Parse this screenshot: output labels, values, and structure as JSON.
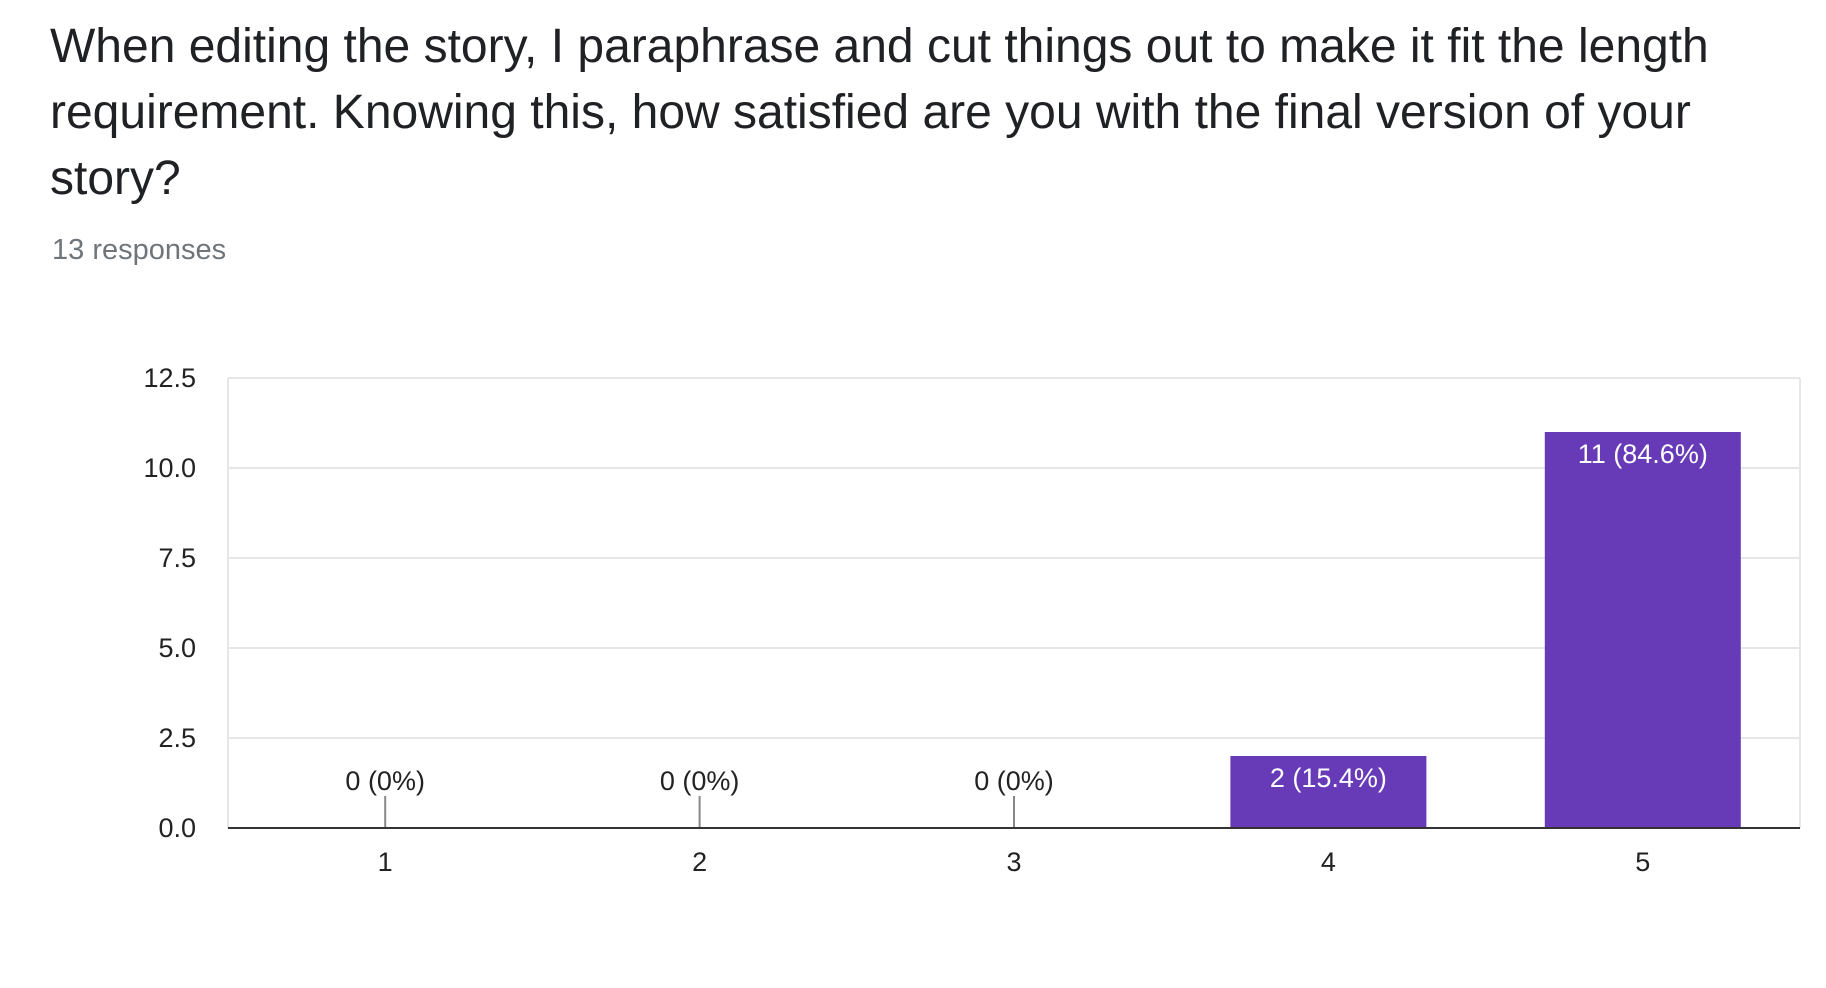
{
  "question": "When editing the story, I paraphrase and cut things out to make it fit the length requirement. Knowing this, how satisfied are you with the final version of your story?",
  "responses": "13 responses",
  "colors": {
    "bar": "#673ab7",
    "grid": "#e6e6e6",
    "baseline": "#333333"
  },
  "chart_data": {
    "type": "bar",
    "categories": [
      "1",
      "2",
      "3",
      "4",
      "5"
    ],
    "values": [
      0,
      0,
      0,
      2,
      11
    ],
    "data_labels": [
      "0 (0%)",
      "0 (0%)",
      "0 (0%)",
      "2 (15.4%)",
      "11 (84.6%)"
    ],
    "ylim": [
      0,
      12.5
    ],
    "yticks": [
      "0.0",
      "2.5",
      "5.0",
      "7.5",
      "10.0",
      "12.5"
    ],
    "title": "",
    "xlabel": "",
    "ylabel": "",
    "grid": true,
    "legend": "none"
  }
}
